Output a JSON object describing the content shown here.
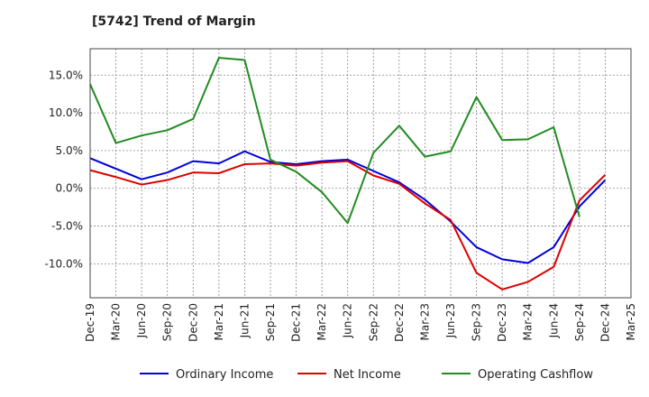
{
  "chart_data": {
    "type": "line",
    "title": "[5742]  Trend of Margin",
    "xlabel": "",
    "ylabel": "",
    "ylim": [
      -14.5,
      18.5
    ],
    "y_ticks": [
      15,
      10,
      5,
      0,
      -5,
      -10
    ],
    "y_tick_labels": [
      "15.0%",
      "10.0%",
      "5.0%",
      "0.0%",
      "-5.0%",
      "-10.0%"
    ],
    "grid": true,
    "legend_position": "bottom",
    "x_labels": [
      "Dec-19",
      "Mar-20",
      "Jun-20",
      "Sep-20",
      "Dec-20",
      "Mar-21",
      "Jun-21",
      "Sep-21",
      "Dec-21",
      "Mar-22",
      "Jun-22",
      "Sep-22",
      "Dec-22",
      "Mar-23",
      "Jun-23",
      "Sep-23",
      "Dec-23",
      "Mar-24",
      "Jun-24",
      "Sep-24",
      "Dec-24",
      "Mar-25"
    ],
    "series": [
      {
        "name": "Ordinary Income",
        "color": "#0000dd",
        "values": [
          4.0,
          2.6,
          1.2,
          2.1,
          3.6,
          3.3,
          4.9,
          3.5,
          3.2,
          3.6,
          3.8,
          2.3,
          0.8,
          -1.5,
          -4.4,
          -7.8,
          -9.4,
          -9.9,
          -7.8,
          -2.4,
          1.1,
          null
        ]
      },
      {
        "name": "Net Income",
        "color": "#dd0000",
        "values": [
          2.4,
          1.5,
          0.5,
          1.1,
          2.1,
          2.0,
          3.2,
          3.3,
          3.0,
          3.4,
          3.6,
          1.7,
          0.6,
          -2.0,
          -4.2,
          -11.2,
          -13.4,
          -12.4,
          -10.4,
          -1.6,
          1.8,
          null
        ]
      },
      {
        "name": "Operating Cashflow",
        "color": "#228b22",
        "values": [
          13.8,
          6.0,
          7.0,
          7.7,
          9.2,
          17.3,
          17.0,
          3.8,
          2.2,
          -0.5,
          -4.6,
          4.7,
          8.3,
          4.2,
          4.9,
          12.1,
          6.4,
          6.5,
          8.1,
          -3.8,
          null,
          null
        ]
      }
    ]
  }
}
